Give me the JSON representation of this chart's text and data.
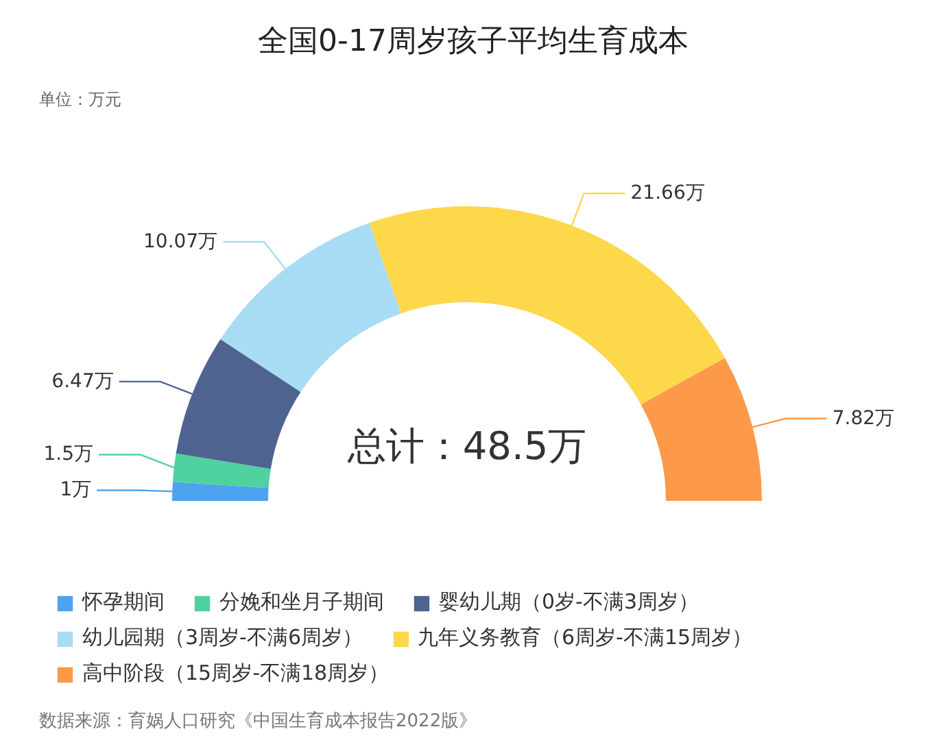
{
  "chart_data": {
    "type": "donut",
    "title": "全国0-17周岁孩子平均生育成本",
    "annotations": [
      "单位：万元",
      "总计：48.5万",
      "数据来源：育娲人口研究《中国生育成本报告2022版》"
    ],
    "categories": [
      "怀孕期间",
      "分娩和坐月子期间",
      "婴幼儿期（0岁-不满3周岁）",
      "幼儿园期（3周岁-不满6周岁）",
      "九年义务教育（6周岁-不满15周岁）",
      "高中阶段（15周岁-不满18周岁）"
    ],
    "values": [
      1,
      1.5,
      6.47,
      10.07,
      21.66,
      7.82
    ],
    "value_labels": [
      "1万",
      "1.5万",
      "6.47万",
      "10.07万",
      "21.66万",
      "7.82万"
    ],
    "colors": [
      "#4da3f0",
      "#4fd1a0",
      "#4f6391",
      "#a8dcf5",
      "#fcd84a",
      "#fd9a4a"
    ],
    "legend": "bottom"
  }
}
